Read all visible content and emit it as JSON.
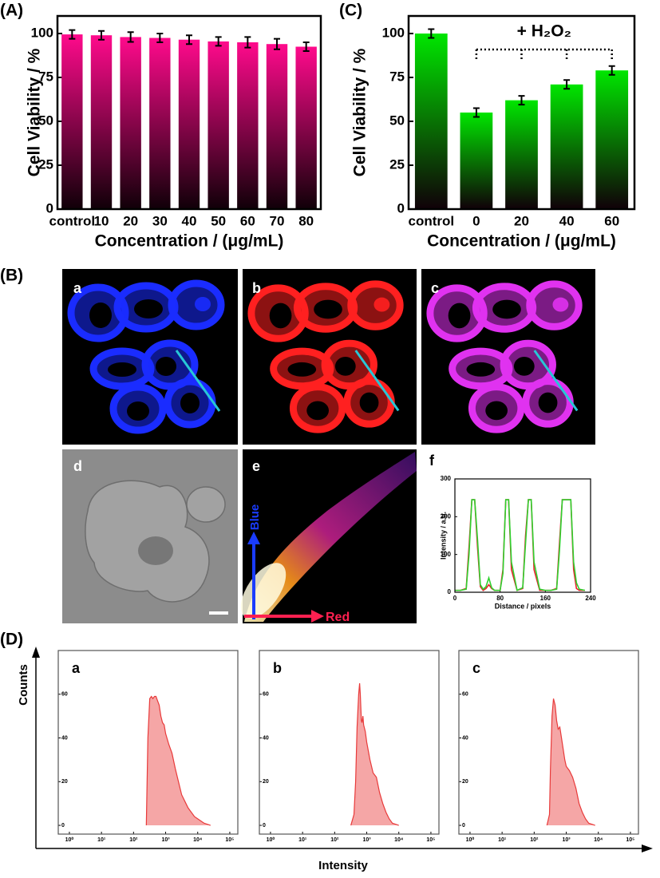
{
  "panel_labels": [
    "(A)",
    "(B)",
    "(C)",
    "(D)"
  ],
  "image_labels": [
    "a",
    "b",
    "c",
    "d",
    "e"
  ],
  "image_e_axes": [
    "Blue",
    "Red"
  ],
  "flow_axes": {
    "ylabel": "Counts",
    "xlabel": "Intensity"
  },
  "chart_data": [
    {
      "type": "bar",
      "ylabel": "Cell Viability / %",
      "xlabel": "Concentration / (μg/mL)",
      "categories": [
        "control",
        "10",
        "20",
        "30",
        "40",
        "50",
        "60",
        "70",
        "80"
      ],
      "values": [
        99.5,
        99,
        98,
        97.5,
        96.5,
        95.5,
        95,
        94,
        92.5
      ],
      "errors": [
        2.5,
        2.5,
        2.8,
        2.5,
        2.5,
        2.5,
        3,
        3,
        2.5
      ],
      "color": "#ff0a8c",
      "ylim": [
        0,
        110
      ],
      "yticks": [
        0,
        25,
        50,
        75,
        100
      ]
    },
    {
      "type": "bar",
      "ylabel": "Cell Viability / %",
      "xlabel": "Concentration / (μg/mL)",
      "annotation": "+ H₂O₂",
      "categories": [
        "control",
        "0",
        "20",
        "40",
        "60"
      ],
      "values": [
        100,
        55,
        62,
        71,
        79
      ],
      "errors": [
        2.5,
        2.5,
        2.5,
        2.5,
        2.5
      ],
      "color": "#00e600",
      "ylim": [
        0,
        110
      ],
      "yticks": [
        0,
        25,
        50,
        75,
        100
      ]
    },
    {
      "type": "line",
      "title": "f",
      "ylabel": "Intensity / a.u.",
      "xlabel": "Distance / pixels",
      "x": [
        0,
        10,
        20,
        25,
        30,
        35,
        40,
        45,
        50,
        55,
        60,
        65,
        70,
        80,
        85,
        90,
        95,
        100,
        110,
        120,
        125,
        130,
        135,
        140,
        150,
        160,
        170,
        180,
        185,
        190,
        195,
        200,
        205,
        210,
        215,
        220,
        230
      ],
      "series": [
        {
          "color": "#e8202a",
          "values": [
            5,
            5,
            10,
            120,
            245,
            245,
            120,
            15,
            5,
            10,
            20,
            10,
            5,
            5,
            60,
            245,
            245,
            60,
            5,
            10,
            150,
            245,
            245,
            60,
            5,
            5,
            5,
            10,
            130,
            245,
            245,
            245,
            245,
            60,
            10,
            5,
            5
          ]
        },
        {
          "color": "#2fd12f",
          "values": [
            5,
            5,
            8,
            100,
            245,
            245,
            140,
            20,
            8,
            15,
            38,
            12,
            5,
            5,
            50,
            245,
            245,
            80,
            5,
            12,
            130,
            245,
            245,
            80,
            8,
            5,
            5,
            8,
            110,
            245,
            245,
            245,
            245,
            80,
            25,
            8,
            5
          ]
        }
      ],
      "xlim": [
        0,
        240
      ],
      "xticks": [
        0,
        80,
        160,
        240
      ],
      "ylim": [
        0,
        300
      ],
      "yticks": [
        0,
        100,
        200,
        300
      ]
    },
    {
      "type": "area",
      "title": "a",
      "x_scale": "log",
      "color": "#e83a3a",
      "x": [
        250,
        280,
        320,
        360,
        400,
        450,
        500,
        560,
        630,
        710,
        800,
        900,
        1000,
        1260,
        1580,
        2000,
        2510,
        3160,
        3980,
        5010,
        6310,
        7940,
        10000,
        12600,
        15800,
        20000,
        25100
      ],
      "values": [
        0,
        40,
        58,
        59,
        58,
        59,
        59,
        57,
        55,
        50,
        47,
        46,
        42,
        37,
        33,
        26,
        20,
        14,
        11,
        8,
        6,
        4,
        3,
        2,
        1,
        0.5,
        0
      ],
      "xlim": [
        0.45,
        178000
      ],
      "ylim": [
        -4,
        80
      ],
      "yticks": [
        0,
        20,
        40,
        60
      ],
      "xticks": [
        {
          "value": 1,
          "label": "10⁰"
        },
        {
          "value": 10,
          "label": "10¹"
        },
        {
          "value": 100,
          "label": "10²"
        },
        {
          "value": 1000,
          "label": "10³"
        },
        {
          "value": 10000,
          "label": "10⁴"
        },
        {
          "value": 100000,
          "label": "10⁵"
        }
      ]
    },
    {
      "type": "area",
      "title": "b",
      "x_scale": "log",
      "color": "#e83a3a",
      "x": [
        320,
        400,
        450,
        500,
        560,
        600,
        630,
        680,
        710,
        760,
        800,
        900,
        1000,
        1260,
        1580,
        2000,
        2510,
        3160,
        3980,
        5010,
        6310,
        7940,
        10000
      ],
      "values": [
        0,
        5,
        20,
        45,
        60,
        65,
        60,
        48,
        47,
        50,
        46,
        43,
        38,
        30,
        24,
        22,
        15,
        10,
        6,
        3,
        1,
        0.5,
        0
      ],
      "xlim": [
        0.45,
        178000
      ],
      "ylim": [
        -4,
        80
      ],
      "yticks": [
        0,
        20,
        40,
        60
      ],
      "xticks": [
        {
          "value": 1,
          "label": "10⁰"
        },
        {
          "value": 10,
          "label": "10¹"
        },
        {
          "value": 100,
          "label": "10²"
        },
        {
          "value": 1000,
          "label": "10³"
        },
        {
          "value": 10000,
          "label": "10⁴"
        },
        {
          "value": 100000,
          "label": "10⁵"
        }
      ]
    },
    {
      "type": "area",
      "title": "c",
      "x_scale": "log",
      "color": "#e83a3a",
      "x": [
        250,
        300,
        320,
        360,
        400,
        450,
        500,
        560,
        630,
        710,
        800,
        900,
        1000,
        1260,
        1580,
        2000,
        2510,
        3160,
        3980,
        5010,
        6310,
        7940
      ],
      "values": [
        0,
        5,
        25,
        50,
        58,
        55,
        48,
        44,
        45,
        40,
        35,
        30,
        27,
        25,
        22,
        17,
        10,
        6,
        3,
        1,
        0.5,
        0
      ],
      "xlim": [
        0.45,
        178000
      ],
      "ylim": [
        -4,
        80
      ],
      "yticks": [
        0,
        20,
        40,
        60
      ],
      "xticks": [
        {
          "value": 1,
          "label": "10⁰"
        },
        {
          "value": 10,
          "label": "10¹"
        },
        {
          "value": 100,
          "label": "10²"
        },
        {
          "value": 1000,
          "label": "10³"
        },
        {
          "value": 10000,
          "label": "10⁴"
        },
        {
          "value": 100000,
          "label": "10⁵"
        }
      ]
    }
  ]
}
